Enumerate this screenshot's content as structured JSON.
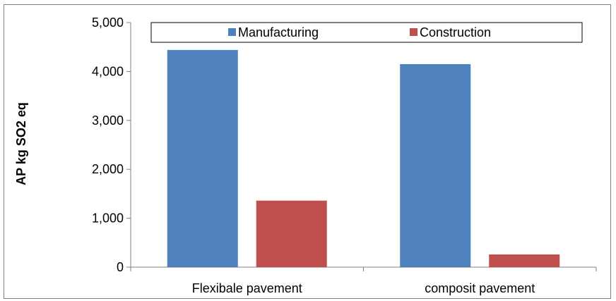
{
  "chart_data": {
    "type": "bar",
    "title": "",
    "xlabel": "",
    "ylabel": "AP kg SO2 eq",
    "categories": [
      "Flexibale pavement",
      "composit pavement"
    ],
    "series": [
      {
        "name": "Manufacturing",
        "values": [
          4440,
          4150
        ],
        "color": "#4f81bd"
      },
      {
        "name": "Construction",
        "values": [
          1360,
          260
        ],
        "color": "#c0504d"
      }
    ],
    "ylim": [
      0,
      5000
    ],
    "yticks": [
      0,
      1000,
      2000,
      3000,
      4000,
      5000
    ],
    "ytick_labels": [
      "0",
      "1,000",
      "2,000",
      "3,000",
      "4,000",
      "5,000"
    ],
    "grid": false,
    "legend": "top-inside"
  }
}
